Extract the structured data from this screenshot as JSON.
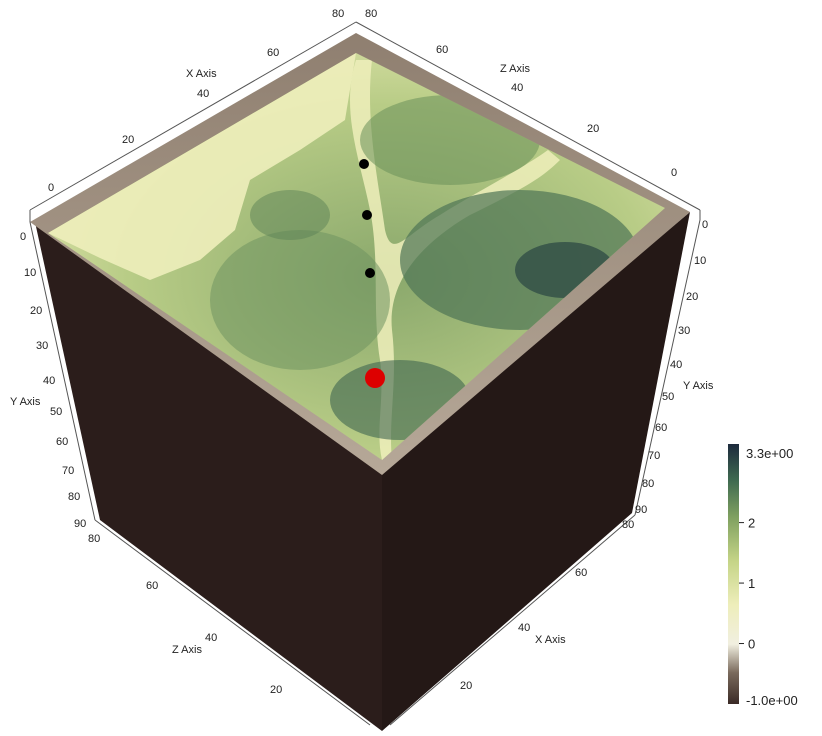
{
  "axes": {
    "x": {
      "title": "X Axis",
      "top_ticks": [
        "0",
        "20",
        "40",
        "60",
        "80"
      ],
      "bottom_ticks": [
        "20",
        "40",
        "60",
        "80"
      ]
    },
    "y": {
      "title": "Y Axis",
      "left_ticks": [
        "0",
        "10",
        "20",
        "30",
        "40",
        "50",
        "60",
        "70",
        "80",
        "90"
      ],
      "right_ticks": [
        "0",
        "10",
        "20",
        "30",
        "40",
        "50",
        "60",
        "70",
        "80",
        "90"
      ]
    },
    "z": {
      "title": "Z Axis",
      "top_ticks": [
        "80",
        "60",
        "40",
        "20",
        "0"
      ],
      "bottom_ticks": [
        "80",
        "60",
        "40",
        "20"
      ]
    }
  },
  "colorbar": {
    "max_label": "3.3e+00",
    "min_label": "-1.0e+00",
    "tick_labels": [
      "2",
      "1",
      "0"
    ],
    "range": [
      -1.0,
      3.3
    ],
    "ticks": [
      2,
      1,
      0
    ],
    "colors": [
      "#3a2a26",
      "#7a6a5c",
      "#f1efe0",
      "#eeeebb",
      "#c5d487",
      "#7fa060",
      "#3f6a50",
      "#1d2a3d"
    ]
  },
  "markers": {
    "black_count": 3,
    "black_color": "#000000",
    "red_color": "#dd0000"
  },
  "colors": {
    "block_side": "#2b1d1b",
    "block_side_right": "#241816",
    "rim": "#9d8d7c",
    "lowland": "#eeeebb",
    "forest_dark": "#3c5c4c"
  }
}
